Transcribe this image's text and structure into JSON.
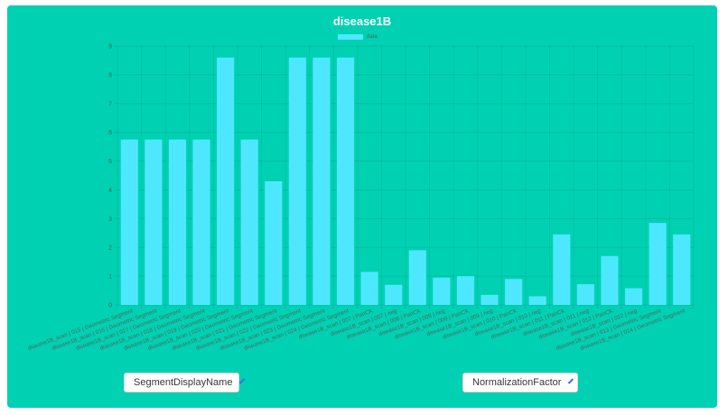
{
  "chart_data": {
    "type": "bar",
    "title": "disease1B",
    "ylim": [
      0,
      9
    ],
    "yticks": [
      "0",
      "1",
      "2",
      "3",
      "4",
      "5",
      "6",
      "7",
      "8",
      "9"
    ],
    "grid": true,
    "legend_position": "top",
    "series": [
      {
        "name": "data",
        "color": "#4de8ff",
        "values": [
          5.75,
          5.75,
          5.75,
          5.75,
          8.6,
          5.75,
          4.3,
          8.6,
          8.6,
          8.6,
          1.15,
          0.7,
          1.9,
          0.95,
          1.0,
          0.35,
          0.9,
          0.3,
          2.45,
          0.72,
          1.7,
          0.58,
          2.85,
          2.45
        ]
      }
    ],
    "categories": [
      "disease1B_scan | 015 | Geometric Segment",
      "disease1B_scan | 016 | Geometric Segment",
      "disease1B_scan | 017 | Geometric Segment",
      "disease1B_scan | 018 | Geometric Segment",
      "disease1B_scan | 019 | Geometric Segment",
      "disease1B_scan | 020 | Geometric Segment",
      "disease1B_scan | 021 | Geometric Segment",
      "disease1B_scan | 022 | Geometric Segment",
      "disease1B_scan | 023 | Geometric Segment",
      "disease1B_scan | 024 | Geometric Segment",
      "disease1B_scan | 007 | PanCK",
      "disease1B_scan | 007 | neg",
      "disease1B_scan | 008 | PanCK",
      "disease1B_scan | 008 | neg",
      "disease1B_scan | 009 | PanCK",
      "disease1B_scan | 009 | neg",
      "disease1B_scan | 010 | PanCK",
      "disease1B_scan | 010 | neg",
      "disease1B_scan | 011 | PanCK",
      "disease1B_scan | 011 | neg",
      "disease1B_scan | 012 | PanCK",
      "disease1B_scan | 012 | neg",
      "disease1B_scan | 013 | Geometric Segment",
      "disease1B_scan | 014 | Geometric Segment"
    ]
  },
  "controls": {
    "x_selector": "SegmentDisplayName",
    "y_selector": "NormalizationFactor"
  },
  "colors": {
    "background": "#00d1b2",
    "bar": "#4de8ff",
    "title": "#ffffff"
  }
}
